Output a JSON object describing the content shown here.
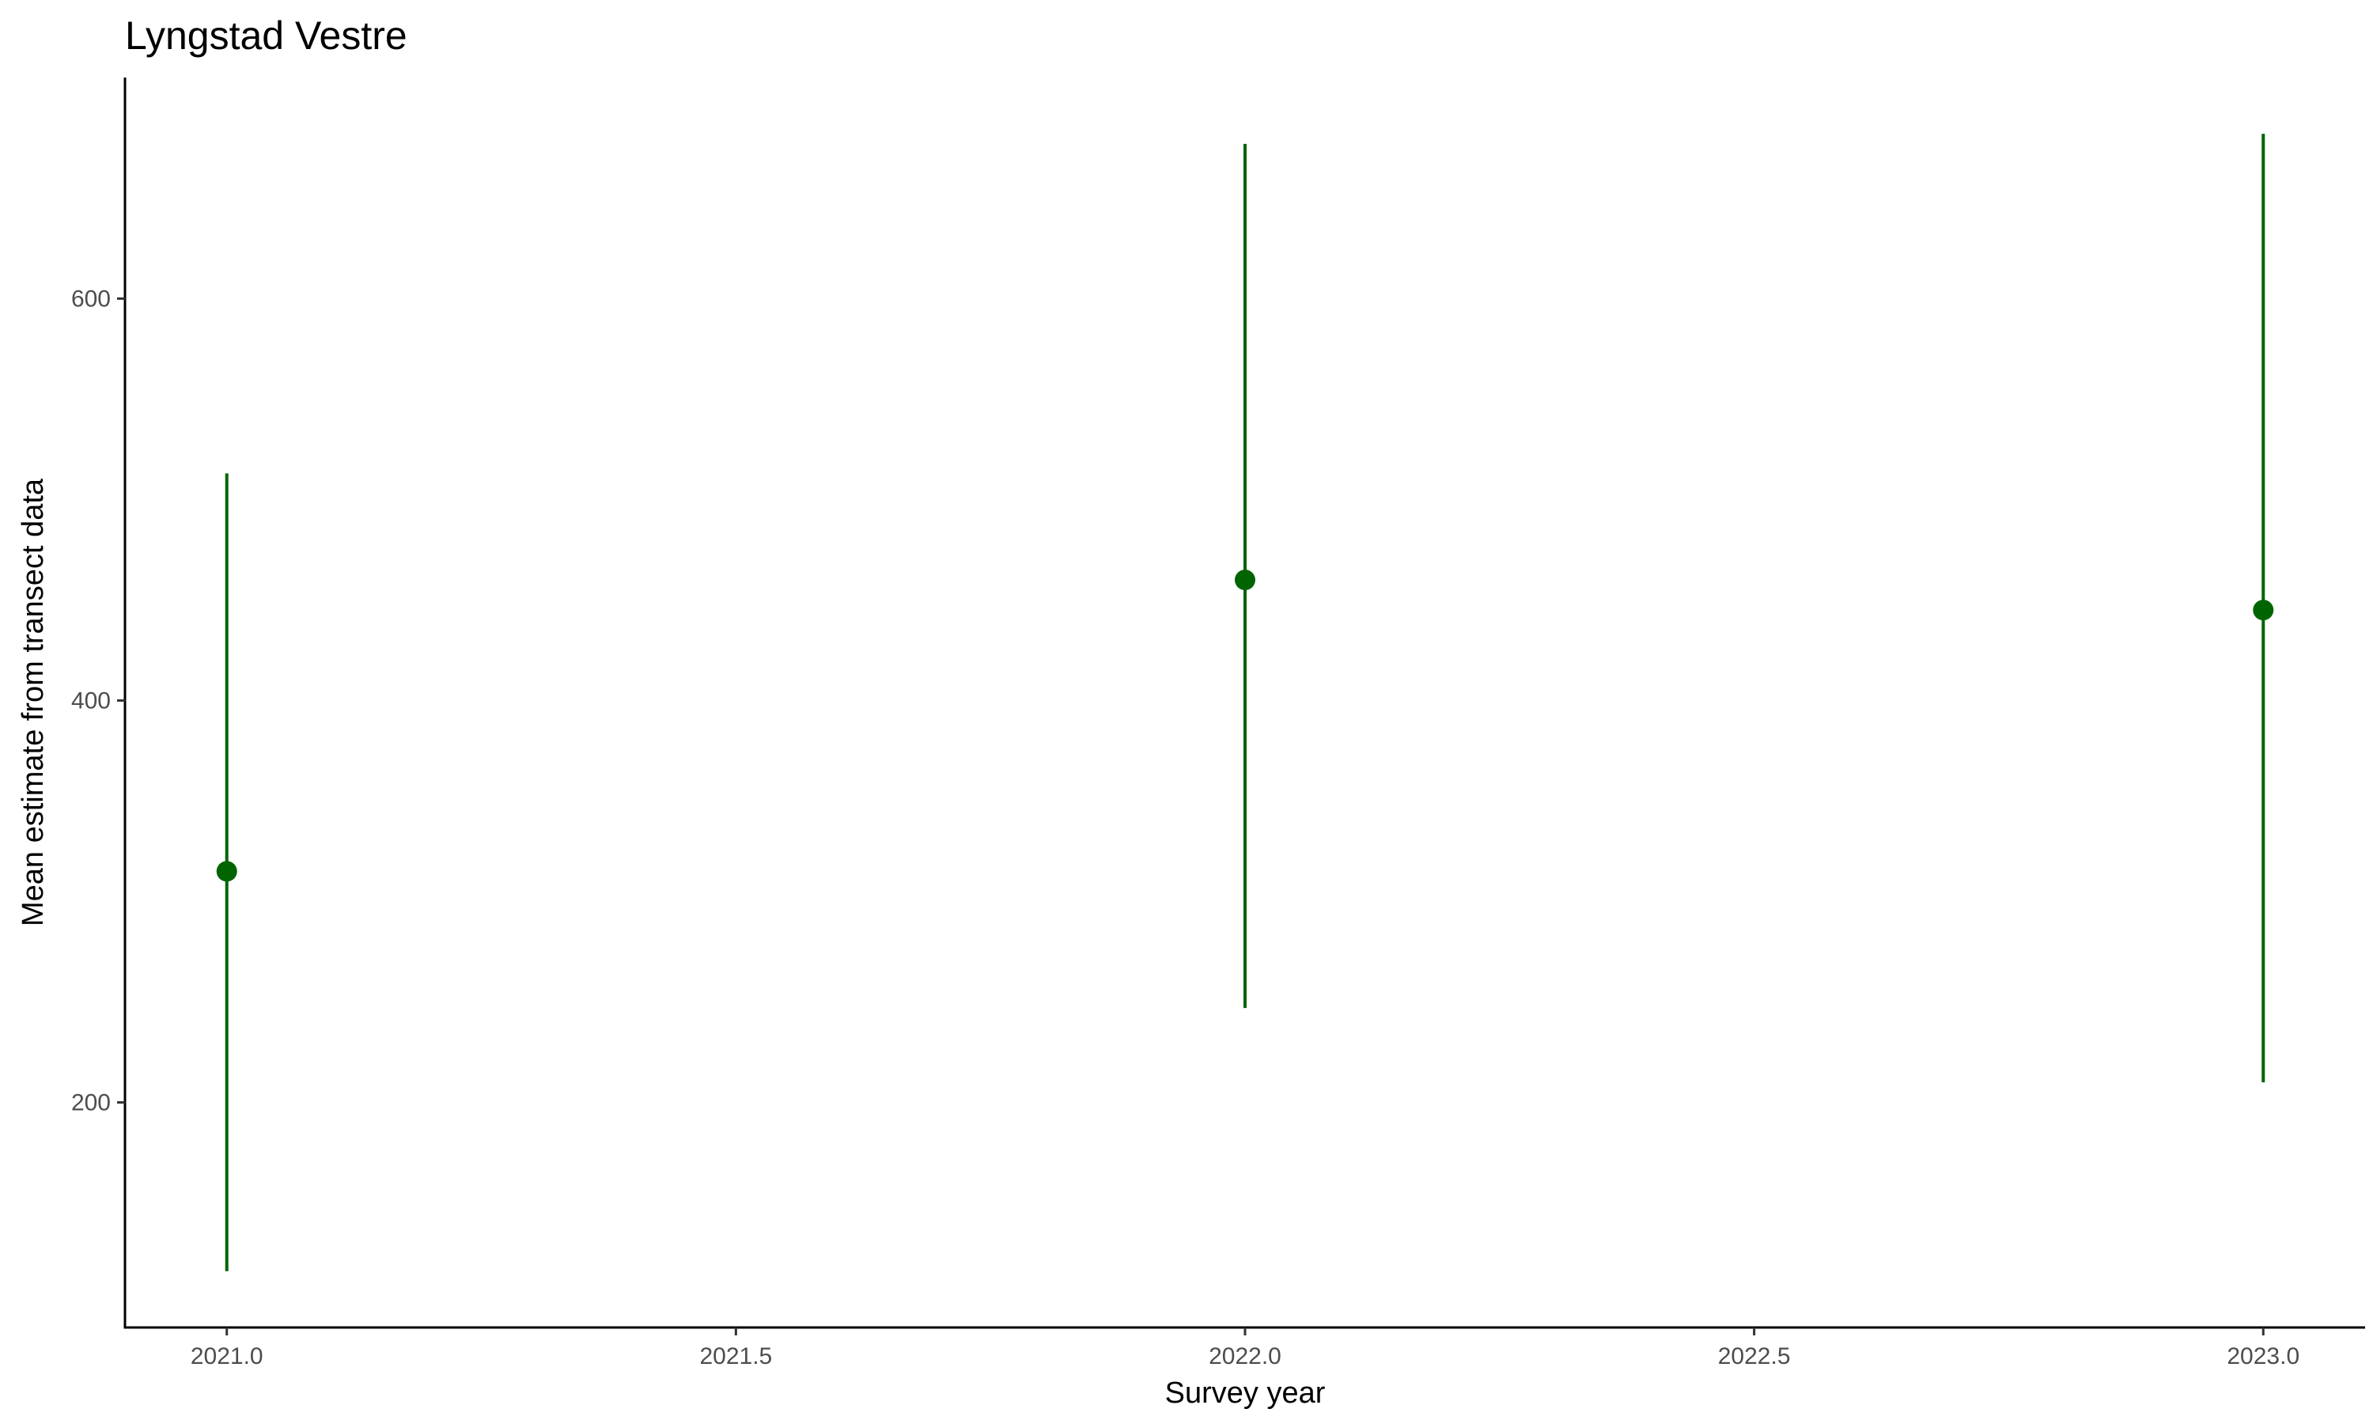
{
  "chart_data": {
    "type": "scatter",
    "title": "Lyngstad Vestre",
    "xlabel": "Survey year",
    "ylabel": "Mean estimate from transect data",
    "xlim": [
      2020.9,
      2023.1
    ],
    "ylim": [
      88,
      710
    ],
    "x_ticks": [
      2021.0,
      2021.5,
      2022.0,
      2022.5,
      2023.0
    ],
    "x_tick_labels": [
      "2021.0",
      "2021.5",
      "2022.0",
      "2022.5",
      "2023.0"
    ],
    "y_ticks": [
      200,
      400,
      600
    ],
    "y_tick_labels": [
      "200",
      "400",
      "600"
    ],
    "grid": false,
    "legend": "none",
    "color": "#006400",
    "points": [
      {
        "x": 2021.0,
        "y": 315,
        "ymin": 116,
        "ymax": 513
      },
      {
        "x": 2022.0,
        "y": 460,
        "ymin": 247,
        "ymax": 677
      },
      {
        "x": 2023.0,
        "y": 445,
        "ymin": 210,
        "ymax": 682
      }
    ]
  }
}
